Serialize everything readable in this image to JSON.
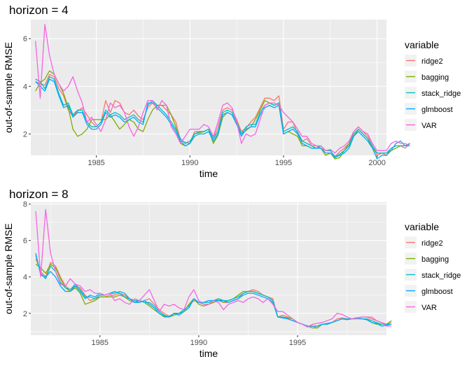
{
  "chart_data": [
    {
      "type": "line",
      "title": "horizon = 4",
      "xlabel": "time",
      "ylabel": "out-of-sample RMSE",
      "xlim": [
        1981.5,
        2000.5
      ],
      "ylim": [
        1.1,
        6.8
      ],
      "xticks": [
        1985,
        1990,
        1995,
        2000
      ],
      "yticks": [
        2,
        4,
        6
      ],
      "grid": true,
      "legend": {
        "position": "right",
        "title": "variable"
      },
      "x_start": 1981.75,
      "x_step": 0.25,
      "series": [
        {
          "name": "ridge2",
          "color": "#F8766D",
          "values": [
            4.2,
            4.1,
            4.05,
            4.5,
            4.4,
            3.9,
            3.6,
            3.0,
            2.75,
            2.95,
            3.1,
            2.8,
            2.5,
            2.3,
            2.5,
            3.4,
            2.9,
            3.4,
            3.3,
            2.9,
            2.8,
            3.0,
            2.75,
            2.6,
            3.1,
            3.3,
            3.2,
            3.2,
            3.0,
            2.8,
            2.5,
            1.7,
            1.65,
            1.6,
            2.1,
            2.1,
            2.1,
            2.2,
            1.8,
            2.3,
            3.0,
            3.1,
            3.0,
            2.6,
            2.1,
            2.25,
            2.5,
            2.7,
            3.1,
            3.5,
            3.5,
            3.4,
            3.6,
            2.2,
            2.5,
            2.5,
            2.0,
            1.7,
            1.8,
            1.5,
            1.5,
            1.4,
            1.3,
            1.3,
            1.05,
            1.25,
            1.4,
            1.6,
            2.1,
            2.3,
            2.1,
            1.9,
            1.5,
            1.1,
            1.2,
            1.1,
            1.4,
            1.5,
            1.5,
            1.4,
            1.6
          ]
        },
        {
          "name": "bagging",
          "color": "#7CAE00",
          "values": [
            3.8,
            4.15,
            4.3,
            4.65,
            4.5,
            4.1,
            3.7,
            3.1,
            2.2,
            1.9,
            2.0,
            2.2,
            2.6,
            2.6,
            2.6,
            2.6,
            2.8,
            2.5,
            2.2,
            2.4,
            2.6,
            2.5,
            2.2,
            2.1,
            2.6,
            3.0,
            3.2,
            3.2,
            3.2,
            2.8,
            2.3,
            1.6,
            1.5,
            1.6,
            2.0,
            2.05,
            2.1,
            2.2,
            1.6,
            1.95,
            2.7,
            2.9,
            2.8,
            2.4,
            2.0,
            2.15,
            2.3,
            2.6,
            3.0,
            3.4,
            3.3,
            3.2,
            3.3,
            2.0,
            2.1,
            2.0,
            1.9,
            1.5,
            1.5,
            1.4,
            1.4,
            1.4,
            1.1,
            1.2,
            0.95,
            1.0,
            1.3,
            1.6,
            1.9,
            2.2,
            2.0,
            1.8,
            1.4,
            1.2,
            1.2,
            1.2,
            1.3,
            1.4,
            1.5,
            1.5,
            1.6
          ]
        },
        {
          "name": "stack_ridge",
          "color": "#00BFC4",
          "values": [
            4.3,
            4.2,
            3.9,
            4.4,
            4.3,
            3.7,
            3.2,
            3.3,
            2.8,
            3.0,
            3.0,
            2.5,
            2.3,
            2.3,
            2.5,
            3.0,
            2.8,
            2.9,
            2.8,
            2.6,
            2.7,
            2.8,
            2.6,
            2.5,
            3.2,
            3.4,
            3.2,
            3.0,
            2.8,
            2.5,
            2.2,
            1.8,
            1.6,
            1.7,
            2.0,
            2.1,
            2.1,
            2.2,
            1.8,
            2.1,
            2.9,
            3.0,
            2.9,
            2.5,
            2.0,
            2.3,
            2.4,
            2.4,
            2.9,
            3.2,
            3.3,
            3.2,
            3.3,
            2.1,
            2.2,
            2.3,
            2.1,
            1.7,
            1.6,
            1.5,
            1.4,
            1.5,
            1.3,
            1.3,
            1.05,
            1.15,
            1.3,
            1.5,
            2.0,
            2.2,
            2.0,
            1.8,
            1.5,
            1.2,
            1.2,
            1.2,
            1.4,
            1.5,
            1.5,
            1.5,
            1.5
          ]
        },
        {
          "name": "glmboost",
          "color": "#00A9FF",
          "values": [
            4.2,
            4.0,
            3.8,
            4.3,
            4.2,
            3.6,
            3.1,
            3.2,
            2.7,
            2.9,
            2.9,
            2.4,
            2.2,
            2.2,
            2.4,
            2.9,
            2.7,
            2.8,
            2.7,
            2.5,
            2.6,
            2.7,
            2.5,
            2.4,
            3.3,
            3.3,
            3.1,
            2.9,
            2.7,
            2.4,
            2.1,
            1.7,
            1.5,
            1.6,
            1.9,
            2.0,
            2.0,
            2.1,
            1.7,
            2.0,
            2.8,
            2.9,
            2.8,
            2.4,
            1.9,
            2.2,
            2.3,
            2.3,
            2.8,
            3.1,
            3.2,
            3.1,
            3.2,
            2.0,
            2.1,
            2.2,
            2.0,
            1.6,
            1.5,
            1.4,
            1.4,
            1.4,
            1.2,
            1.2,
            1.0,
            1.1,
            1.2,
            1.4,
            1.9,
            2.1,
            1.9,
            1.7,
            1.4,
            0.95,
            1.1,
            1.1,
            1.3,
            1.6,
            1.7,
            1.5,
            1.6
          ]
        },
        {
          "name": "VAR",
          "color": "#F564E3",
          "values": [
            5.9,
            3.5,
            6.6,
            5.3,
            4.5,
            4.1,
            3.8,
            4.0,
            4.4,
            3.8,
            3.3,
            2.5,
            2.7,
            2.4,
            2.1,
            2.6,
            3.3,
            3.1,
            3.2,
            2.9,
            2.3,
            1.9,
            2.3,
            2.9,
            3.4,
            3.4,
            3.0,
            3.4,
            3.2,
            2.3,
            2.0,
            1.6,
            1.9,
            2.2,
            2.2,
            2.2,
            2.4,
            2.3,
            1.9,
            2.5,
            3.2,
            3.3,
            3.1,
            2.5,
            1.6,
            2.0,
            1.9,
            2.0,
            2.6,
            3.2,
            3.3,
            3.3,
            3.2,
            2.9,
            2.7,
            2.5,
            2.2,
            1.9,
            1.9,
            1.6,
            1.5,
            1.5,
            1.3,
            1.35,
            1.2,
            1.4,
            1.5,
            1.7,
            2.1,
            2.3,
            2.1,
            2.0,
            1.6,
            1.3,
            1.3,
            1.3,
            1.6,
            1.7,
            1.6,
            1.6,
            1.5
          ]
        }
      ]
    },
    {
      "type": "line",
      "title": "horizon = 8",
      "xlabel": "time",
      "ylabel": "out-of-sample RMSE",
      "xlim": [
        1981.5,
        1999.5
      ],
      "ylim": [
        0.8,
        8.1
      ],
      "xticks": [
        1985,
        1990,
        1995
      ],
      "yticks": [
        2,
        4,
        6,
        8
      ],
      "grid": true,
      "legend": {
        "position": "right",
        "title": "variable"
      },
      "x_start": 1981.75,
      "x_step": 0.25,
      "series": [
        {
          "name": "ridge2",
          "color": "#F8766D",
          "values": [
            5.0,
            4.3,
            4.0,
            4.8,
            4.6,
            4.0,
            3.5,
            3.3,
            3.5,
            3.4,
            3.0,
            2.7,
            2.8,
            2.9,
            2.9,
            3.0,
            3.0,
            3.1,
            3.0,
            2.8,
            2.7,
            2.6,
            2.7,
            2.8,
            2.5,
            2.2,
            2.0,
            1.85,
            2.0,
            2.0,
            2.2,
            2.4,
            2.7,
            2.6,
            2.5,
            2.5,
            2.6,
            2.7,
            2.6,
            2.6,
            2.7,
            2.8,
            3.1,
            3.2,
            3.3,
            3.2,
            3.0,
            2.9,
            2.8,
            1.8,
            1.9,
            1.8,
            1.7,
            1.5,
            1.4,
            1.3,
            1.3,
            1.2,
            1.4,
            1.4,
            1.5,
            1.7,
            1.75,
            1.7,
            1.7,
            1.75,
            1.8,
            1.8,
            1.7,
            1.6,
            1.5,
            1.4,
            1.5
          ]
        },
        {
          "name": "bagging",
          "color": "#7CAE00",
          "values": [
            4.7,
            4.5,
            4.2,
            4.7,
            4.5,
            3.9,
            3.4,
            3.2,
            3.4,
            3.1,
            2.5,
            2.6,
            2.7,
            2.9,
            2.9,
            2.9,
            2.9,
            3.0,
            2.9,
            2.7,
            2.6,
            2.7,
            2.6,
            2.4,
            2.2,
            2.0,
            1.8,
            1.8,
            1.9,
            2.0,
            2.1,
            2.5,
            2.8,
            2.5,
            2.4,
            2.5,
            2.6,
            2.8,
            2.6,
            2.7,
            2.8,
            3.0,
            3.2,
            3.2,
            3.2,
            3.1,
            3.0,
            2.9,
            2.7,
            1.8,
            1.8,
            1.75,
            1.7,
            1.5,
            1.4,
            1.3,
            1.2,
            1.2,
            1.4,
            1.4,
            1.5,
            1.6,
            1.7,
            1.7,
            1.7,
            1.75,
            1.7,
            1.7,
            1.5,
            1.4,
            1.4,
            1.4,
            1.6
          ]
        },
        {
          "name": "stack_ridge",
          "color": "#00BFC4",
          "values": [
            5.2,
            4.2,
            3.9,
            4.6,
            4.3,
            3.7,
            3.4,
            3.3,
            3.6,
            3.3,
            2.9,
            2.9,
            2.8,
            3.0,
            3.0,
            3.1,
            3.1,
            3.2,
            3.1,
            2.8,
            2.7,
            2.7,
            2.6,
            2.6,
            2.4,
            2.1,
            1.9,
            1.8,
            2.0,
            2.0,
            2.2,
            2.4,
            2.8,
            2.6,
            2.6,
            2.6,
            2.7,
            2.8,
            2.7,
            2.7,
            2.8,
            2.9,
            3.1,
            3.2,
            3.2,
            3.1,
            3.0,
            2.9,
            2.7,
            1.8,
            1.8,
            1.7,
            1.6,
            1.5,
            1.4,
            1.3,
            1.3,
            1.3,
            1.4,
            1.4,
            1.5,
            1.6,
            1.7,
            1.7,
            1.7,
            1.75,
            1.7,
            1.7,
            1.6,
            1.5,
            1.4,
            1.4,
            1.4
          ]
        },
        {
          "name": "glmboost",
          "color": "#00A9FF",
          "values": [
            5.3,
            4.1,
            4.0,
            4.3,
            4.0,
            3.5,
            3.2,
            3.2,
            3.5,
            3.2,
            2.8,
            3.0,
            2.9,
            3.1,
            3.0,
            3.1,
            3.2,
            3.1,
            2.9,
            2.8,
            2.6,
            2.6,
            2.7,
            2.5,
            2.3,
            2.0,
            1.85,
            1.8,
            2.0,
            1.9,
            2.1,
            2.3,
            2.8,
            2.6,
            2.6,
            2.7,
            2.7,
            2.7,
            2.7,
            2.6,
            2.7,
            2.8,
            3.0,
            3.1,
            3.1,
            3.0,
            2.9,
            2.8,
            2.6,
            1.8,
            1.75,
            1.7,
            1.6,
            1.5,
            1.4,
            1.3,
            1.3,
            1.3,
            1.4,
            1.45,
            1.5,
            1.6,
            1.7,
            1.65,
            1.7,
            1.7,
            1.7,
            1.65,
            1.5,
            1.45,
            1.3,
            1.35,
            1.4
          ]
        },
        {
          "name": "VAR",
          "color": "#F564E3",
          "values": [
            7.6,
            4.0,
            7.7,
            5.3,
            4.3,
            3.6,
            3.5,
            3.9,
            3.6,
            3.5,
            3.2,
            3.3,
            3.1,
            3.1,
            3.0,
            3.1,
            2.7,
            2.8,
            2.6,
            2.5,
            2.8,
            2.7,
            3.0,
            3.3,
            2.7,
            2.1,
            2.5,
            2.4,
            2.5,
            2.3,
            2.2,
            2.9,
            3.3,
            2.7,
            2.5,
            2.5,
            2.7,
            2.6,
            2.2,
            2.5,
            2.6,
            2.7,
            2.6,
            2.8,
            2.9,
            2.8,
            2.6,
            2.8,
            2.5,
            2.1,
            2.1,
            1.9,
            1.7,
            1.5,
            1.4,
            1.25,
            1.4,
            1.45,
            1.5,
            1.6,
            1.7,
            2.0,
            1.95,
            1.8,
            1.7,
            1.7,
            1.8,
            1.8,
            1.8,
            1.6,
            1.5,
            1.3,
            1.3
          ]
        }
      ]
    }
  ]
}
